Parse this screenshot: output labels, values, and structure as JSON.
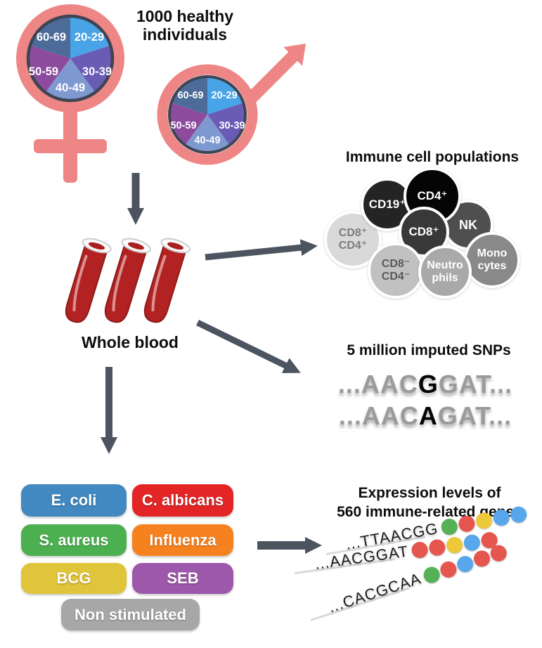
{
  "cohort": {
    "title": "1000 healthy individuals",
    "age_groups": [
      "20-29",
      "30-39",
      "40-49",
      "50-59",
      "60-69"
    ],
    "age_slice_colors": [
      "#49A3E7",
      "#6A5CB5",
      "#7E98D0",
      "#8D4B9E",
      "#4C6B99"
    ],
    "symbol_color": "#EE8686",
    "pie_ring_color": "#3D4452",
    "whole_blood_label": "Whole blood",
    "blood_color": "#B32222"
  },
  "arrows_color": "#4B545F",
  "immune": {
    "title": "Immune cell populations",
    "cells": [
      {
        "line1": "CD8⁺",
        "line2": "CD4⁺",
        "bg": "#D9D9D9",
        "fg": "#7D7D7D"
      },
      {
        "line1": "CD19⁺",
        "line2": "",
        "bg": "#242424",
        "fg": "#FFFFFF"
      },
      {
        "line1": "NK",
        "line2": "",
        "bg": "#4F4F4F",
        "fg": "#FFFFFF"
      },
      {
        "line1": "CD4⁺",
        "line2": "",
        "bg": "#050505",
        "fg": "#FFFFFF"
      },
      {
        "line1": "CD8⁺",
        "line2": "",
        "bg": "#383838",
        "fg": "#FFFFFF"
      },
      {
        "line1": "CD8⁻",
        "line2": "CD4⁻",
        "bg": "#C1C1C1",
        "fg": "#595959"
      },
      {
        "line1": "Mono",
        "line2": "cytes",
        "bg": "#898989",
        "fg": "#FFFFFF"
      },
      {
        "line1": "Neutro",
        "line2": "phils",
        "bg": "#A9A9A9",
        "fg": "#FFFFFF"
      }
    ]
  },
  "snps": {
    "title": "5 million imputed SNPs",
    "sequences": [
      {
        "pre": "...AAC",
        "snp": "G",
        "post": "GAT..."
      },
      {
        "pre": "...AAC",
        "snp": "A",
        "post": "GAT..."
      }
    ]
  },
  "stimuli": {
    "items": [
      {
        "label": "E. coli",
        "color": "#4189C0"
      },
      {
        "label": "C. albicans",
        "color": "#E32526"
      },
      {
        "label": "S. aureus",
        "color": "#4CB050"
      },
      {
        "label": "Influenza",
        "color": "#F6821F"
      },
      {
        "label": "BCG",
        "color": "#E0C43A"
      },
      {
        "label": "SEB",
        "color": "#9E58AB"
      },
      {
        "label": "Non stimulated",
        "color": "#A7A7A7"
      }
    ]
  },
  "expression": {
    "title_line1": "Expression levels of",
    "title_line2": "560 immune-related genes",
    "dot_colors": {
      "green": "#56B156",
      "red": "#E4564E",
      "yellow": "#EEC83B",
      "blue": "#58A7EC"
    },
    "rows": [
      {
        "seq": "...TTAACGG",
        "dots": [
          "green",
          "red",
          "yellow",
          "blue",
          "blue"
        ]
      },
      {
        "seq": "...AACGGAT",
        "dots": [
          "red",
          "red",
          "yellow",
          "blue",
          "red"
        ]
      },
      {
        "seq": "...CACGCAA",
        "dots": [
          "green",
          "red",
          "blue",
          "red",
          "red"
        ]
      }
    ]
  }
}
